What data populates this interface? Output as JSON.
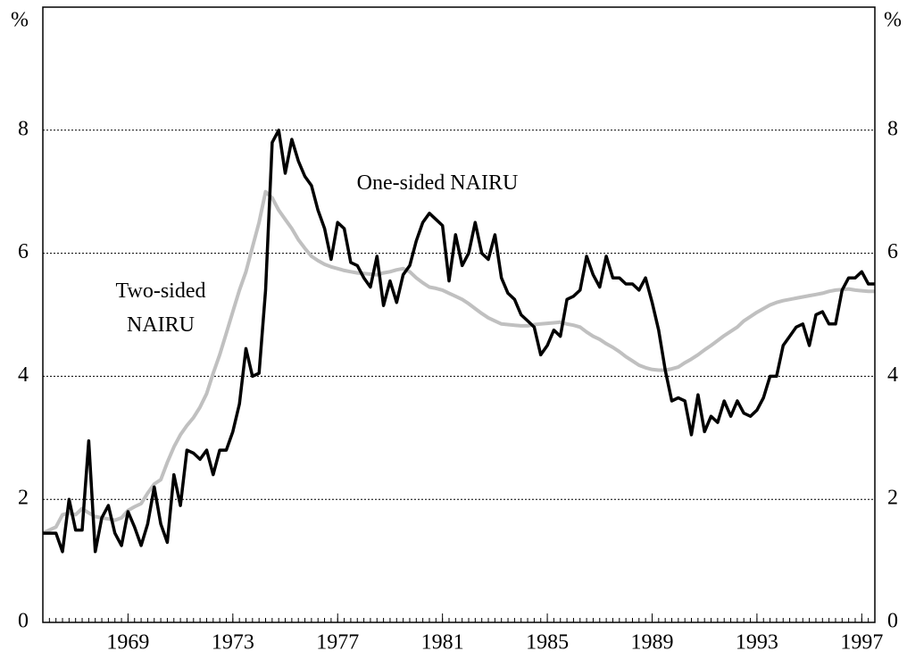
{
  "chart_data": {
    "type": "line",
    "ylabel": "%",
    "y2label": "%",
    "xlim": [
      1965.75,
      1997.5
    ],
    "xticks": [
      1969,
      1973,
      1977,
      1981,
      1985,
      1989,
      1993,
      1997
    ],
    "ylim": [
      0,
      10
    ],
    "yticks": [
      0,
      2,
      4,
      6,
      8
    ],
    "y2lim": [
      0,
      10
    ],
    "y2ticks": [
      0,
      2,
      4,
      6,
      8
    ],
    "grid": true,
    "x": [
      1965.75,
      1966,
      1966.25,
      1966.5,
      1966.75,
      1967,
      1967.25,
      1967.5,
      1967.75,
      1968,
      1968.25,
      1968.5,
      1968.75,
      1969,
      1969.25,
      1969.5,
      1969.75,
      1970,
      1970.25,
      1970.5,
      1970.75,
      1971,
      1971.25,
      1971.5,
      1971.75,
      1972,
      1972.25,
      1972.5,
      1972.75,
      1973,
      1973.25,
      1973.5,
      1973.75,
      1974,
      1974.25,
      1974.5,
      1974.75,
      1975,
      1975.25,
      1975.5,
      1975.75,
      1976,
      1976.25,
      1976.5,
      1976.75,
      1977,
      1977.25,
      1977.5,
      1977.75,
      1978,
      1978.25,
      1978.5,
      1978.75,
      1979,
      1979.25,
      1979.5,
      1979.75,
      1980,
      1980.25,
      1980.5,
      1980.75,
      1981,
      1981.25,
      1981.5,
      1981.75,
      1982,
      1982.25,
      1982.5,
      1982.75,
      1983,
      1983.25,
      1983.5,
      1983.75,
      1984,
      1984.25,
      1984.5,
      1984.75,
      1985,
      1985.25,
      1985.5,
      1985.75,
      1986,
      1986.25,
      1986.5,
      1986.75,
      1987,
      1987.25,
      1987.5,
      1987.75,
      1988,
      1988.25,
      1988.5,
      1988.75,
      1989,
      1989.25,
      1989.5,
      1989.75,
      1990,
      1990.25,
      1990.5,
      1990.75,
      1991,
      1991.25,
      1991.5,
      1991.75,
      1992,
      1992.25,
      1992.5,
      1992.75,
      1993,
      1993.25,
      1993.5,
      1993.75,
      1994,
      1994.25,
      1994.5,
      1994.75,
      1995,
      1995.25,
      1995.5,
      1995.75,
      1996,
      1996.25,
      1996.5,
      1996.75,
      1997,
      1997.25,
      1997.5
    ],
    "series": [
      {
        "name": "One-sided NAIRU",
        "color": "#000000",
        "values": [
          1.45,
          1.45,
          1.45,
          1.15,
          2.0,
          1.5,
          1.5,
          2.95,
          1.15,
          1.7,
          1.9,
          1.45,
          1.25,
          1.8,
          1.55,
          1.25,
          1.6,
          2.2,
          1.6,
          1.3,
          2.4,
          1.9,
          2.8,
          2.75,
          2.65,
          2.8,
          2.4,
          2.8,
          2.8,
          3.1,
          3.55,
          4.45,
          4.0,
          4.05,
          5.4,
          7.8,
          8.0,
          7.3,
          7.85,
          7.5,
          7.25,
          7.1,
          6.7,
          6.4,
          5.9,
          6.5,
          6.4,
          5.85,
          5.8,
          5.6,
          5.45,
          5.95,
          5.15,
          5.55,
          5.2,
          5.65,
          5.8,
          6.2,
          6.5,
          6.65,
          6.55,
          6.45,
          5.55,
          6.3,
          5.8,
          6.0,
          6.5,
          6.0,
          5.9,
          6.3,
          5.6,
          5.35,
          5.25,
          5.0,
          4.9,
          4.8,
          4.35,
          4.5,
          4.75,
          4.65,
          5.25,
          5.3,
          5.4,
          5.95,
          5.65,
          5.45,
          5.95,
          5.6,
          5.6,
          5.5,
          5.5,
          5.4,
          5.6,
          5.2,
          4.75,
          4.1,
          3.6,
          3.65,
          3.6,
          3.05,
          3.7,
          3.1,
          3.35,
          3.25,
          3.6,
          3.35,
          3.6,
          3.4,
          3.35,
          3.45,
          3.65,
          4.0,
          4.0,
          4.5,
          4.65,
          4.8,
          4.85,
          4.5,
          5.0,
          5.05,
          4.85,
          4.85,
          5.4,
          5.6,
          5.6,
          5.7,
          5.5,
          5.5
        ]
      },
      {
        "name": "Two-sided NAIRU",
        "color": "#c0c0c0",
        "values": [
          1.45,
          1.5,
          1.55,
          1.75,
          1.78,
          1.75,
          1.85,
          1.78,
          1.72,
          1.7,
          1.68,
          1.66,
          1.7,
          1.82,
          1.88,
          1.93,
          2.1,
          2.25,
          2.32,
          2.6,
          2.85,
          3.05,
          3.2,
          3.33,
          3.5,
          3.72,
          4.05,
          4.35,
          4.7,
          5.05,
          5.4,
          5.7,
          6.1,
          6.5,
          7.0,
          6.9,
          6.7,
          6.55,
          6.4,
          6.22,
          6.08,
          5.95,
          5.88,
          5.82,
          5.78,
          5.75,
          5.72,
          5.7,
          5.68,
          5.67,
          5.66,
          5.65,
          5.68,
          5.7,
          5.73,
          5.75,
          5.7,
          5.6,
          5.52,
          5.45,
          5.43,
          5.4,
          5.35,
          5.3,
          5.25,
          5.18,
          5.1,
          5.02,
          4.95,
          4.9,
          4.85,
          4.84,
          4.83,
          4.82,
          4.82,
          4.84,
          4.85,
          4.86,
          4.87,
          4.88,
          4.85,
          4.83,
          4.8,
          4.72,
          4.65,
          4.6,
          4.53,
          4.47,
          4.4,
          4.32,
          4.25,
          4.18,
          4.14,
          4.11,
          4.1,
          4.1,
          4.12,
          4.15,
          4.22,
          4.28,
          4.35,
          4.43,
          4.5,
          4.58,
          4.66,
          4.73,
          4.8,
          4.9,
          4.97,
          5.04,
          5.1,
          5.16,
          5.2,
          5.23,
          5.25,
          5.27,
          5.29,
          5.31,
          5.33,
          5.35,
          5.38,
          5.4,
          5.41,
          5.42,
          5.4,
          5.39,
          5.38,
          5.38
        ]
      }
    ]
  }
}
